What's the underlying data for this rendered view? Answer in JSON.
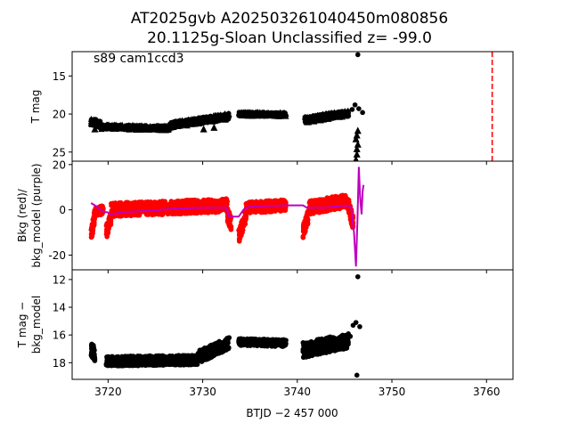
{
  "figure": {
    "title_line1": "AT2025gvb  A202503261040450m080856",
    "title_line2": "20.1125g-Sloan Unclassified z= -99.0",
    "xlabel": "BTJD −2 457 000"
  },
  "chart_data": [
    {
      "type": "scatter",
      "panel": "top",
      "ylabel": "T mag",
      "annotation": "s89 cam1ccd3",
      "xlim": [
        3716.2,
        3762.8
      ],
      "ylim": [
        26.2,
        11.8
      ],
      "y_inverted": true,
      "yticks": [
        15,
        20,
        25
      ],
      "colors": {
        "points": "#000000",
        "vline": "#ff0000"
      },
      "vline": {
        "x": 3760.6,
        "style": "dashed"
      },
      "series": [
        {
          "segments": [
            {
              "x0": 3718.2,
              "x1": 3719.2,
              "y0": 20.9,
              "y1": 21.4,
              "spread": 0.9
            },
            {
              "x0": 3719.2,
              "x1": 3726.5,
              "y0": 21.7,
              "y1": 21.9,
              "spread": 0.6
            },
            {
              "x0": 3726.5,
              "x1": 3732.8,
              "y0": 21.5,
              "y1": 20.3,
              "spread": 0.8
            },
            {
              "x0": 3733.8,
              "x1": 3738.8,
              "y0": 20.0,
              "y1": 20.1,
              "spread": 0.5
            },
            {
              "x0": 3740.8,
              "x1": 3745.4,
              "y0": 20.8,
              "y1": 19.9,
              "spread": 0.8
            }
          ]
        }
      ],
      "points": [
        {
          "x": 3746.4,
          "y": 12.2,
          "marker": "dot"
        },
        {
          "x": 3745.8,
          "y": 19.4,
          "marker": "dot"
        },
        {
          "x": 3746.1,
          "y": 18.8,
          "marker": "dot"
        },
        {
          "x": 3746.5,
          "y": 19.3,
          "marker": "dot"
        },
        {
          "x": 3746.9,
          "y": 19.8,
          "marker": "dot"
        },
        {
          "x": 3718.6,
          "y": 22.0,
          "marker": "triangle"
        },
        {
          "x": 3730.1,
          "y": 22.0,
          "marker": "triangle"
        },
        {
          "x": 3731.2,
          "y": 21.8,
          "marker": "triangle"
        },
        {
          "x": 3746.2,
          "y": 26.0,
          "marker": "triangle"
        },
        {
          "x": 3746.3,
          "y": 25.3,
          "marker": "triangle"
        },
        {
          "x": 3746.3,
          "y": 24.6,
          "marker": "triangle"
        },
        {
          "x": 3746.4,
          "y": 24.0,
          "marker": "triangle"
        },
        {
          "x": 3746.2,
          "y": 23.3,
          "marker": "triangle"
        },
        {
          "x": 3746.3,
          "y": 22.8,
          "marker": "triangle"
        },
        {
          "x": 3746.4,
          "y": 22.2,
          "marker": "triangle"
        }
      ]
    },
    {
      "type": "scatter",
      "panel": "middle",
      "ylabel": "Bkg (red)/",
      "ylabel2": "bkg_model (purple)",
      "xlim": [
        3716.2,
        3762.8
      ],
      "ylim": [
        -26.5,
        21.5
      ],
      "yticks": [
        -20,
        0,
        20
      ],
      "colors": {
        "points": "#ff0000",
        "model": "#bf00bf"
      },
      "series": [
        {
          "segments": [
            {
              "x0": 3718.2,
              "x1": 3718.6,
              "y0": -12.0,
              "y1": -2.0,
              "spread": 6.0
            },
            {
              "x0": 3718.6,
              "x1": 3719.5,
              "y0": -1.0,
              "y1": 0.0,
              "spread": 4.0
            },
            {
              "x0": 3719.8,
              "x1": 3720.3,
              "y0": -10.0,
              "y1": -4.0,
              "spread": 6.0
            },
            {
              "x0": 3720.3,
              "x1": 3732.6,
              "y0": 0.0,
              "y1": 2.0,
              "spread": 6.0
            },
            {
              "x0": 3732.6,
              "x1": 3733.0,
              "y0": -2.0,
              "y1": -6.0,
              "spread": 6.0
            },
            {
              "x0": 3733.8,
              "x1": 3734.6,
              "y0": -12.0,
              "y1": -2.0,
              "spread": 6.0
            },
            {
              "x0": 3734.6,
              "x1": 3738.8,
              "y0": 1.0,
              "y1": 2.0,
              "spread": 5.0
            },
            {
              "x0": 3740.6,
              "x1": 3741.2,
              "y0": -10.0,
              "y1": -2.0,
              "spread": 6.0
            },
            {
              "x0": 3741.2,
              "x1": 3745.4,
              "y0": 1.0,
              "y1": 4.0,
              "spread": 6.0
            },
            {
              "x0": 3745.4,
              "x1": 3745.9,
              "y0": 2.0,
              "y1": -6.0,
              "spread": 6.0
            }
          ]
        }
      ],
      "model_line": {
        "x": [
          3718.2,
          3718.6,
          3719.2,
          3719.6,
          3719.9,
          3720.3,
          3721.5,
          3724.0,
          3727.0,
          3730.0,
          3732.5,
          3732.8,
          3733.8,
          3734.3,
          3735.0,
          3738.8,
          3740.6,
          3741.0,
          3743.0,
          3745.2,
          3745.7,
          3746.0,
          3746.2,
          3746.35,
          3746.5,
          3746.65,
          3746.8,
          3746.9,
          3747.0
        ],
        "y": [
          3.0,
          2.0,
          0.0,
          -1.0,
          -1.0,
          -2.0,
          -1.0,
          -0.5,
          0.5,
          1.0,
          1.0,
          -3.0,
          -3.0,
          0.0,
          1.5,
          2.0,
          2.0,
          1.0,
          1.0,
          2.0,
          1.0,
          -10.0,
          -25.0,
          -5.0,
          19.0,
          5.0,
          -2.0,
          8.0,
          11.0
        ]
      }
    },
    {
      "type": "scatter",
      "panel": "bottom",
      "ylabel": "T mag −",
      "ylabel2": "bkg_model",
      "xlim": [
        3716.2,
        3762.8
      ],
      "ylim": [
        19.2,
        11.3
      ],
      "y_inverted": true,
      "xticks": [
        3720,
        3730,
        3740,
        3750,
        3760
      ],
      "yticks": [
        12,
        14,
        16,
        18
      ],
      "colors": {
        "points": "#000000"
      },
      "series": [
        {
          "segments": [
            {
              "x0": 3718.2,
              "x1": 3718.6,
              "y0": 17.0,
              "y1": 17.4,
              "spread": 1.0
            },
            {
              "x0": 3719.8,
              "x1": 3729.5,
              "y0": 17.9,
              "y1": 17.8,
              "spread": 0.7
            },
            {
              "x0": 3729.5,
              "x1": 3732.8,
              "y0": 17.6,
              "y1": 16.6,
              "spread": 0.9
            },
            {
              "x0": 3733.8,
              "x1": 3738.8,
              "y0": 16.5,
              "y1": 16.6,
              "spread": 0.5
            },
            {
              "x0": 3740.6,
              "x1": 3745.4,
              "y0": 17.1,
              "y1": 16.4,
              "spread": 1.1
            }
          ]
        }
      ],
      "points": [
        {
          "x": 3746.4,
          "y": 11.8,
          "marker": "dot"
        },
        {
          "x": 3746.3,
          "y": 18.9,
          "marker": "dot"
        },
        {
          "x": 3745.9,
          "y": 15.3,
          "marker": "dot"
        },
        {
          "x": 3746.2,
          "y": 15.1,
          "marker": "dot"
        },
        {
          "x": 3746.6,
          "y": 15.4,
          "marker": "dot"
        },
        {
          "x": 3745.6,
          "y": 16.1,
          "marker": "dot"
        }
      ]
    }
  ]
}
